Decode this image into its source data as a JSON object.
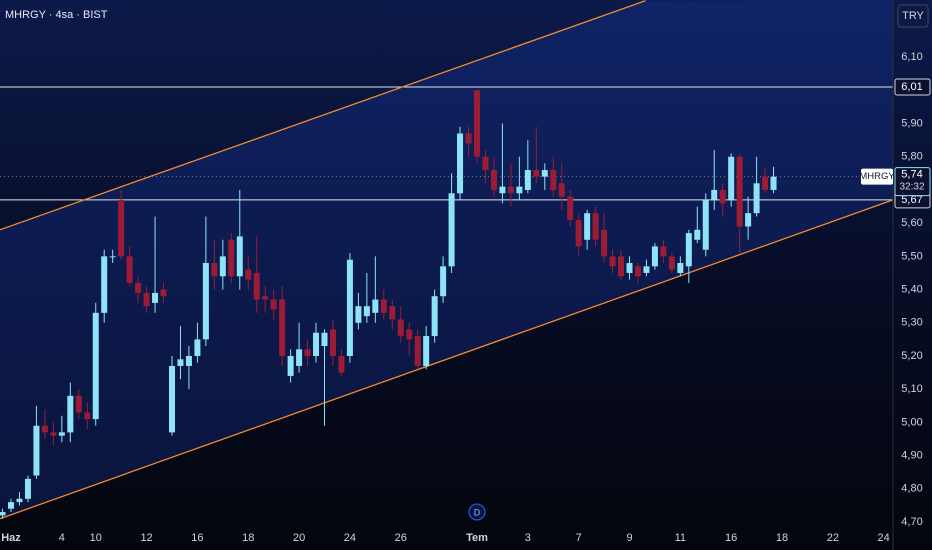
{
  "chart_data": {
    "type": "candlestick",
    "title": "MHRGY · 4sa · BIST",
    "currency": "TRY",
    "marker": "D",
    "up_color": "#8fe3f7",
    "down_color": "#9c1c35",
    "grid": false,
    "xlim": [
      -0.3,
      105.1
    ],
    "ylim": [
      4.676,
      6.272
    ],
    "xticks": [
      {
        "value": 1,
        "label": "Haz"
      },
      {
        "value": 7,
        "label": "4"
      },
      {
        "value": 11,
        "label": "10"
      },
      {
        "value": 17,
        "label": "12"
      },
      {
        "value": 23,
        "label": "16"
      },
      {
        "value": 29,
        "label": "18"
      },
      {
        "value": 35,
        "label": "20"
      },
      {
        "value": 41,
        "label": "24"
      },
      {
        "value": 47,
        "label": "26"
      },
      {
        "value": 56,
        "label": "Tem"
      },
      {
        "value": 62,
        "label": "3"
      },
      {
        "value": 68,
        "label": "7"
      },
      {
        "value": 74,
        "label": "9"
      },
      {
        "value": 80,
        "label": "11"
      },
      {
        "value": 86,
        "label": "16"
      },
      {
        "value": 92,
        "label": "18"
      },
      {
        "value": 98,
        "label": "22"
      },
      {
        "value": 104,
        "label": "24"
      }
    ],
    "yticks": [
      {
        "value": 4.7,
        "label": "4,70"
      },
      {
        "value": 4.8,
        "label": "4,80"
      },
      {
        "value": 4.9,
        "label": "4,90"
      },
      {
        "value": 5.0,
        "label": "5,00"
      },
      {
        "value": 5.1,
        "label": "5,10"
      },
      {
        "value": 5.2,
        "label": "5,20"
      },
      {
        "value": 5.3,
        "label": "5,30"
      },
      {
        "value": 5.4,
        "label": "5,40"
      },
      {
        "value": 5.5,
        "label": "5,50"
      },
      {
        "value": 5.6,
        "label": "5,60"
      },
      {
        "value": 5.8,
        "label": "5,80"
      },
      {
        "value": 5.9,
        "label": "5,90"
      },
      {
        "value": 6.1,
        "label": "6,10"
      }
    ],
    "open": [
      4.72,
      4.74,
      4.76,
      4.77,
      4.84,
      4.99,
      4.97,
      4.96,
      4.97,
      5.08,
      5.03,
      5.01,
      5.33,
      5.5,
      5.67,
      5.5,
      5.42,
      5.39,
      5.36,
      5.4,
      4.97,
      5.17,
      5.17,
      5.2,
      5.25,
      5.48,
      5.44,
      5.55,
      5.44,
      5.46,
      5.45,
      5.38,
      5.37,
      5.37,
      5.14,
      5.17,
      5.22,
      5.2,
      5.23,
      5.28,
      5.2,
      5.2,
      5.3,
      5.32,
      5.33,
      5.37,
      5.35,
      5.31,
      5.28,
      5.26,
      5.17,
      5.26,
      5.38,
      5.47,
      5.69,
      5.87,
      6.0,
      5.8,
      5.76,
      5.69,
      5.71,
      5.69,
      5.7,
      5.76,
      5.74,
      5.76,
      5.72,
      5.68,
      5.61,
      5.55,
      5.63,
      5.58,
      5.5,
      5.5,
      5.45,
      5.47,
      5.45,
      5.47,
      5.53,
      5.5,
      5.45,
      5.47,
      5.55,
      5.52,
      5.67,
      5.7,
      5.67,
      5.8,
      5.59,
      5.63,
      5.74,
      5.7
    ],
    "high": [
      4.74,
      4.77,
      4.79,
      4.84,
      5.05,
      5.04,
      5.0,
      5.02,
      5.12,
      5.1,
      5.06,
      5.36,
      5.52,
      5.52,
      5.7,
      5.53,
      5.44,
      5.41,
      5.62,
      5.42,
      5.2,
      5.29,
      5.23,
      5.3,
      5.62,
      5.55,
      5.55,
      5.57,
      5.7,
      5.5,
      5.56,
      5.41,
      5.4,
      5.41,
      5.22,
      5.3,
      5.25,
      5.3,
      5.28,
      5.31,
      5.22,
      5.51,
      5.39,
      5.45,
      5.5,
      5.4,
      5.37,
      5.35,
      5.3,
      5.28,
      5.29,
      5.4,
      5.5,
      5.75,
      5.89,
      5.89,
      6.0,
      5.82,
      5.8,
      5.9,
      5.78,
      5.8,
      5.85,
      5.89,
      5.78,
      5.8,
      5.78,
      5.7,
      5.63,
      5.64,
      5.65,
      5.63,
      5.52,
      5.52,
      5.5,
      5.48,
      5.49,
      5.54,
      5.55,
      5.51,
      5.5,
      5.58,
      5.65,
      5.69,
      5.82,
      5.72,
      5.81,
      5.81,
      5.68,
      5.8,
      5.77,
      5.77
    ],
    "low": [
      4.71,
      4.73,
      4.75,
      4.76,
      4.83,
      4.95,
      4.93,
      4.94,
      4.94,
      5.01,
      4.98,
      4.99,
      5.3,
      5.48,
      5.49,
      5.41,
      5.36,
      5.33,
      5.33,
      5.36,
      4.96,
      5.13,
      5.1,
      5.18,
      5.23,
      5.4,
      5.4,
      5.42,
      5.4,
      5.4,
      5.33,
      5.33,
      5.31,
      5.17,
      5.12,
      5.15,
      5.17,
      5.18,
      4.99,
      5.17,
      5.14,
      5.18,
      5.28,
      5.3,
      5.3,
      5.31,
      5.28,
      5.24,
      5.2,
      5.16,
      5.16,
      5.24,
      5.36,
      5.45,
      5.67,
      5.8,
      5.78,
      5.72,
      5.68,
      5.66,
      5.65,
      5.67,
      5.69,
      5.72,
      5.7,
      5.68,
      5.64,
      5.59,
      5.5,
      5.52,
      5.53,
      5.48,
      5.45,
      5.43,
      5.43,
      5.42,
      5.44,
      5.46,
      5.48,
      5.45,
      5.44,
      5.42,
      5.54,
      5.5,
      5.64,
      5.62,
      5.65,
      5.51,
      5.55,
      5.62,
      5.69,
      5.69
    ],
    "close": [
      4.73,
      4.76,
      4.77,
      4.83,
      4.99,
      4.97,
      4.96,
      4.97,
      5.08,
      5.03,
      5.01,
      5.33,
      5.5,
      5.5,
      5.5,
      5.42,
      5.39,
      5.35,
      5.39,
      5.38,
      5.17,
      5.19,
      5.2,
      5.25,
      5.48,
      5.44,
      5.5,
      5.44,
      5.56,
      5.43,
      5.37,
      5.37,
      5.34,
      5.2,
      5.2,
      5.22,
      5.2,
      5.27,
      5.27,
      5.2,
      5.15,
      5.49,
      5.35,
      5.35,
      5.37,
      5.33,
      5.31,
      5.26,
      5.25,
      5.17,
      5.26,
      5.38,
      5.47,
      5.69,
      5.87,
      5.84,
      5.8,
      5.76,
      5.7,
      5.71,
      5.69,
      5.71,
      5.76,
      5.74,
      5.76,
      5.7,
      5.68,
      5.61,
      5.53,
      5.63,
      5.55,
      5.5,
      5.47,
      5.44,
      5.48,
      5.44,
      5.47,
      5.53,
      5.5,
      5.46,
      5.48,
      5.57,
      5.58,
      5.67,
      5.7,
      5.66,
      5.8,
      5.59,
      5.63,
      5.72,
      5.7,
      5.74
    ],
    "horizontal_lines": [
      {
        "value": 6.01,
        "label": "6,01"
      },
      {
        "value": 5.67,
        "label": "5,67"
      }
    ],
    "last_price": {
      "value": 5.74,
      "label": "5,74",
      "countdown": "32:32",
      "symbol": "MHRGY"
    },
    "trend_lines": [
      {
        "color": "#f08a2e",
        "points": [
          [
            -0.3,
            5.58
          ],
          [
            75.9,
            6.27
          ]
        ]
      },
      {
        "color": "#f08a2e",
        "points": [
          [
            -0.3,
            4.71
          ],
          [
            105.1,
            5.67
          ]
        ]
      }
    ]
  }
}
